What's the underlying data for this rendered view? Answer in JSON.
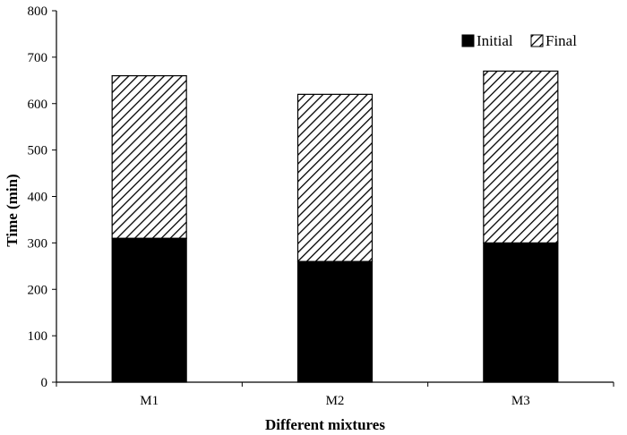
{
  "chart_data": {
    "type": "bar",
    "stacked": true,
    "title": "",
    "xlabel": "Different mixtures",
    "ylabel": "Time (min)",
    "ylim": [
      0,
      800
    ],
    "yticks": [
      0,
      100,
      200,
      300,
      400,
      500,
      600,
      700,
      800
    ],
    "categories": [
      "M1",
      "M2",
      "M3"
    ],
    "series": [
      {
        "name": "Initial",
        "values": [
          310,
          260,
          300
        ],
        "fill": "solid",
        "color": "#000000"
      },
      {
        "name": "Final",
        "values": [
          350,
          360,
          370
        ],
        "fill": "diagonal-hatch",
        "color": "#000000"
      }
    ],
    "grid": false,
    "legend_position": "top-right"
  }
}
